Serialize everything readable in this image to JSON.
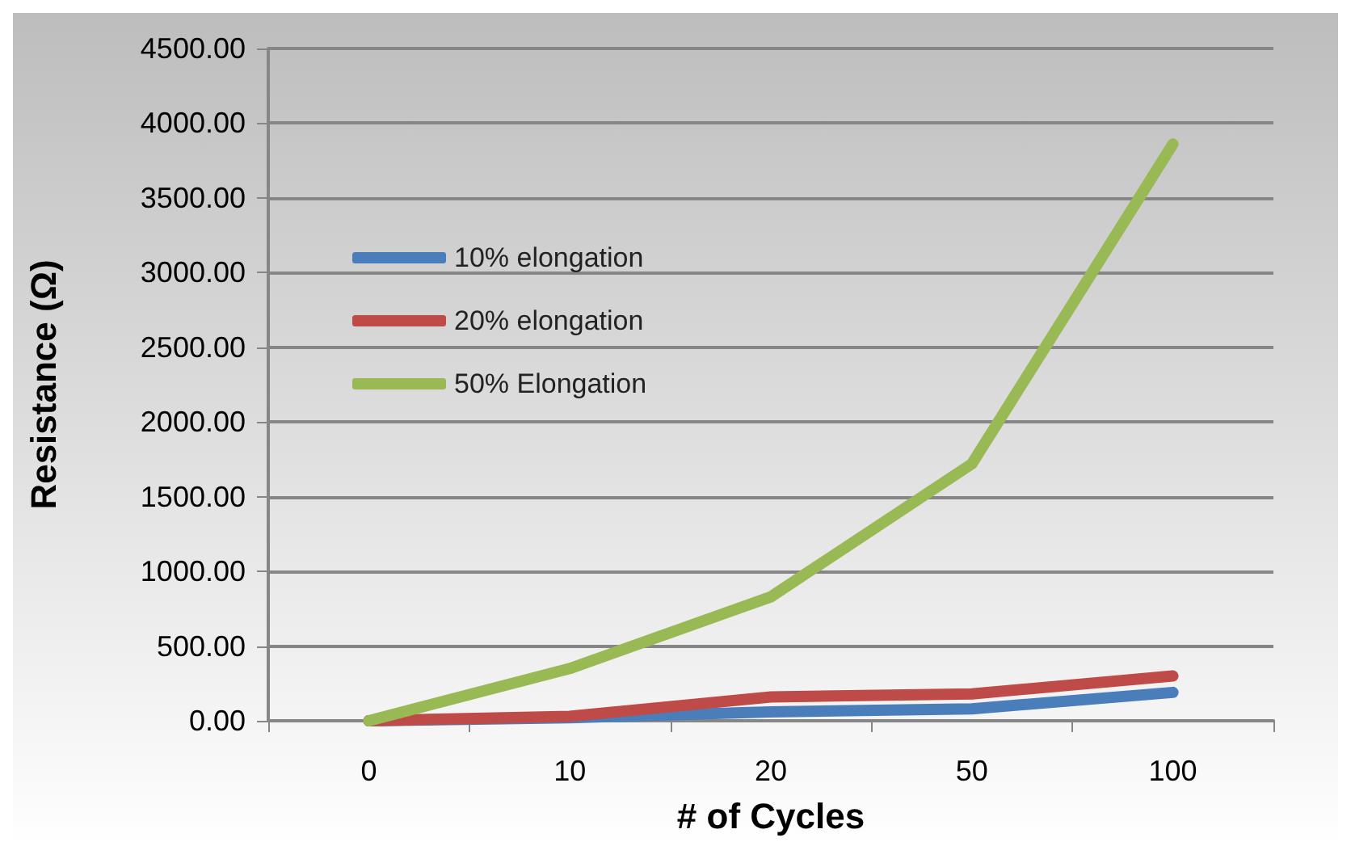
{
  "chart_data": {
    "type": "line",
    "xlabel": "# of Cycles",
    "ylabel": "Resistance (Ω)",
    "categories": [
      "0",
      "10",
      "20",
      "50",
      "100"
    ],
    "series": [
      {
        "name": "10% elongation",
        "color": "#4a7ebb",
        "values": [
          0,
          20,
          60,
          80,
          190
        ]
      },
      {
        "name": "20% elongation",
        "color": "#be4b48",
        "values": [
          0,
          30,
          160,
          180,
          300
        ]
      },
      {
        "name": "50% Elongation",
        "color": "#98b954",
        "values": [
          0,
          350,
          830,
          1720,
          3860
        ]
      }
    ],
    "ylim": [
      0,
      4500
    ],
    "yticks": [
      {
        "value": 0,
        "label": "0.00"
      },
      {
        "value": 500,
        "label": "500.00"
      },
      {
        "value": 1000,
        "label": "1000.00"
      },
      {
        "value": 1500,
        "label": "1500.00"
      },
      {
        "value": 2000,
        "label": "2000.00"
      },
      {
        "value": 2500,
        "label": "2500.00"
      },
      {
        "value": 3000,
        "label": "3000.00"
      },
      {
        "value": 3500,
        "label": "3500.00"
      },
      {
        "value": 4000,
        "label": "4000.00"
      },
      {
        "value": 4500,
        "label": "4500.00"
      }
    ],
    "grid": "y",
    "legend": "left",
    "marker": "none",
    "line_style": "solid"
  }
}
